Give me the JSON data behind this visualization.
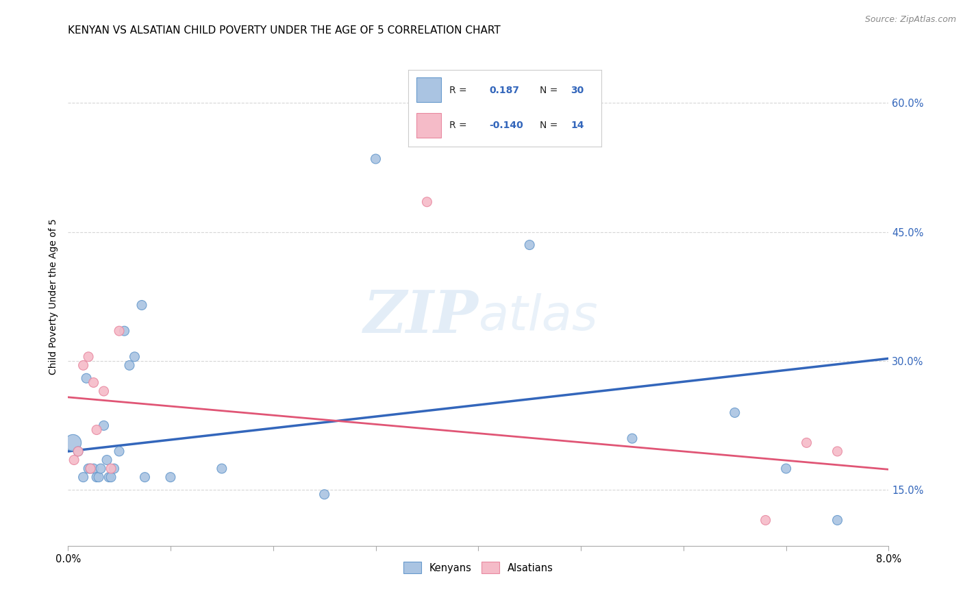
{
  "title": "KENYAN VS ALSATIAN CHILD POVERTY UNDER THE AGE OF 5 CORRELATION CHART",
  "source": "Source: ZipAtlas.com",
  "ylabel": "Child Poverty Under the Age of 5",
  "yticks": [
    0.15,
    0.3,
    0.45,
    0.6
  ],
  "ytick_labels": [
    "15.0%",
    "30.0%",
    "45.0%",
    "60.0%"
  ],
  "xlim": [
    0.0,
    8.0
  ],
  "ylim": [
    0.085,
    0.665
  ],
  "kenyan_R": 0.187,
  "kenyan_N": 30,
  "alsatian_R": -0.14,
  "alsatian_N": 14,
  "kenyan_color": "#aac4e2",
  "kenyan_edge_color": "#6699cc",
  "kenyan_line_color": "#3366bb",
  "alsatian_color": "#f5bbc8",
  "alsatian_edge_color": "#e888a0",
  "alsatian_line_color": "#e05575",
  "legend_R_N_color": "#3366bb",
  "kenyan_points_x": [
    0.05,
    0.1,
    0.15,
    0.18,
    0.2,
    0.22,
    0.25,
    0.28,
    0.3,
    0.32,
    0.35,
    0.38,
    0.4,
    0.42,
    0.45,
    0.5,
    0.55,
    0.6,
    0.65,
    0.72,
    0.75,
    1.0,
    1.5,
    2.5,
    3.0,
    4.5,
    5.5,
    6.5,
    7.0,
    7.5
  ],
  "kenyan_points_y": [
    0.205,
    0.195,
    0.165,
    0.28,
    0.175,
    0.175,
    0.175,
    0.165,
    0.165,
    0.175,
    0.225,
    0.185,
    0.165,
    0.165,
    0.175,
    0.195,
    0.335,
    0.295,
    0.305,
    0.365,
    0.165,
    0.165,
    0.175,
    0.145,
    0.535,
    0.435,
    0.21,
    0.24,
    0.175,
    0.115
  ],
  "kenyan_sizes": [
    300,
    100,
    100,
    100,
    100,
    100,
    100,
    100,
    100,
    100,
    100,
    100,
    100,
    100,
    100,
    100,
    100,
    100,
    100,
    100,
    100,
    100,
    100,
    100,
    100,
    100,
    100,
    100,
    100,
    100
  ],
  "alsatian_points_x": [
    0.06,
    0.1,
    0.15,
    0.2,
    0.25,
    0.28,
    0.35,
    0.42,
    0.5,
    3.5,
    6.8,
    7.2,
    7.5,
    0.22
  ],
  "alsatian_points_y": [
    0.185,
    0.195,
    0.295,
    0.305,
    0.275,
    0.22,
    0.265,
    0.175,
    0.335,
    0.485,
    0.115,
    0.205,
    0.195,
    0.175
  ],
  "alsatian_sizes": [
    100,
    100,
    100,
    100,
    100,
    100,
    100,
    100,
    100,
    100,
    100,
    100,
    100,
    100
  ],
  "kenyan_intercept": 0.195,
  "kenyan_slope": 0.0135,
  "alsatian_intercept": 0.258,
  "alsatian_slope": -0.0105,
  "background_color": "#ffffff",
  "grid_color": "#cccccc",
  "title_fontsize": 11,
  "axis_label_fontsize": 10,
  "tick_fontsize": 10.5,
  "source_fontsize": 9
}
